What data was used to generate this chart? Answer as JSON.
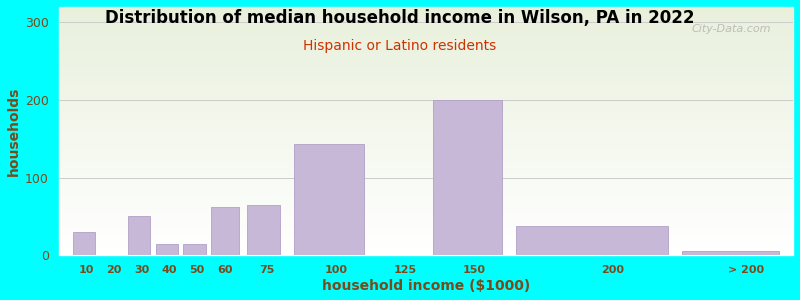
{
  "title": "Distribution of median household income in Wilson, PA in 2022",
  "subtitle": "Hispanic or Latino residents",
  "xlabel": "household income ($1000)",
  "ylabel": "households",
  "background_color": "#00FFFF",
  "bar_color": "#c8b8d8",
  "bar_edge_color": "#b0a0c8",
  "title_color": "#000000",
  "subtitle_color": "#cc3300",
  "axis_label_color": "#7a4a1a",
  "tick_label_color": "#7a4a1a",
  "watermark": "City-Data.com",
  "bar_lefts": [
    5,
    15,
    25,
    35,
    45,
    55,
    68,
    85,
    115,
    135,
    165,
    225
  ],
  "bar_widths": [
    8,
    8,
    8,
    8,
    8,
    10,
    12,
    25,
    15,
    25,
    55,
    35
  ],
  "values": [
    30,
    0,
    50,
    15,
    15,
    62,
    65,
    143,
    0,
    200,
    37,
    5
  ],
  "xtick_pos": [
    10,
    20,
    30,
    40,
    50,
    60,
    75,
    100,
    125,
    150,
    200,
    248
  ],
  "xtick_labels": [
    "10",
    "20",
    "30",
    "40",
    "50",
    "60",
    "75",
    "100",
    "125",
    "150",
    "200",
    "> 200"
  ],
  "ylim": [
    0,
    320
  ],
  "yticks": [
    0,
    100,
    200,
    300
  ],
  "xlim": [
    0,
    265
  ],
  "figsize": [
    8.0,
    3.0
  ],
  "dpi": 100
}
